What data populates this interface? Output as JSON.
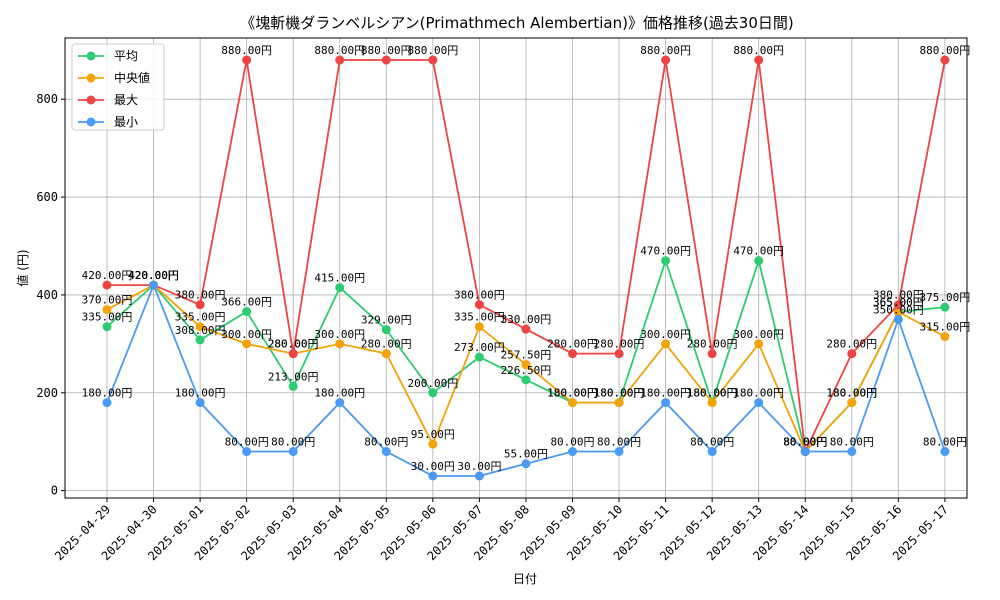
{
  "chart_data": {
    "type": "line",
    "title": "《塊斬機ダランベルシアン(Primathmech Alembertian)》価格推移(過去30日間)",
    "xlabel": "日付",
    "ylabel": "値 (円)",
    "ylim": [
      -15,
      925
    ],
    "yticks": [
      0,
      200,
      400,
      600,
      800
    ],
    "grid": true,
    "legend_position": "top-left",
    "value_suffix": "円",
    "categories": [
      "2025-04-29",
      "2025-04-30",
      "2025-05-01",
      "2025-05-02",
      "2025-05-03",
      "2025-05-04",
      "2025-05-05",
      "2025-05-06",
      "2025-05-07",
      "2025-05-08",
      "2025-05-09",
      "2025-05-10",
      "2025-05-11",
      "2025-05-12",
      "2025-05-13",
      "2025-05-14",
      "2025-05-15",
      "2025-05-16",
      "2025-05-17"
    ],
    "series": [
      {
        "name": "平均",
        "color": "#2ecc71",
        "values": [
          335,
          420,
          308,
          366,
          213,
          415,
          329,
          200,
          273,
          226.5,
          180,
          180,
          470,
          180,
          470,
          80,
          180,
          365,
          375
        ]
      },
      {
        "name": "中央値",
        "color": "#f5a30a",
        "values": [
          370,
          420,
          335,
          300,
          280,
          300,
          280,
          95,
          335,
          257.5,
          180,
          180,
          300,
          180,
          300,
          80,
          180,
          365,
          315
        ]
      },
      {
        "name": "最大",
        "color": "#ef4444",
        "values": [
          420,
          420,
          380,
          880,
          280,
          880,
          880,
          880,
          380,
          330,
          280,
          280,
          880,
          280,
          880,
          80,
          280,
          380,
          880
        ]
      },
      {
        "name": "最小",
        "color": "#4b9bf5",
        "values": [
          180,
          420,
          180,
          80,
          80,
          180,
          80,
          30,
          30,
          55,
          80,
          80,
          180,
          80,
          180,
          80,
          80,
          350,
          80
        ]
      }
    ]
  }
}
